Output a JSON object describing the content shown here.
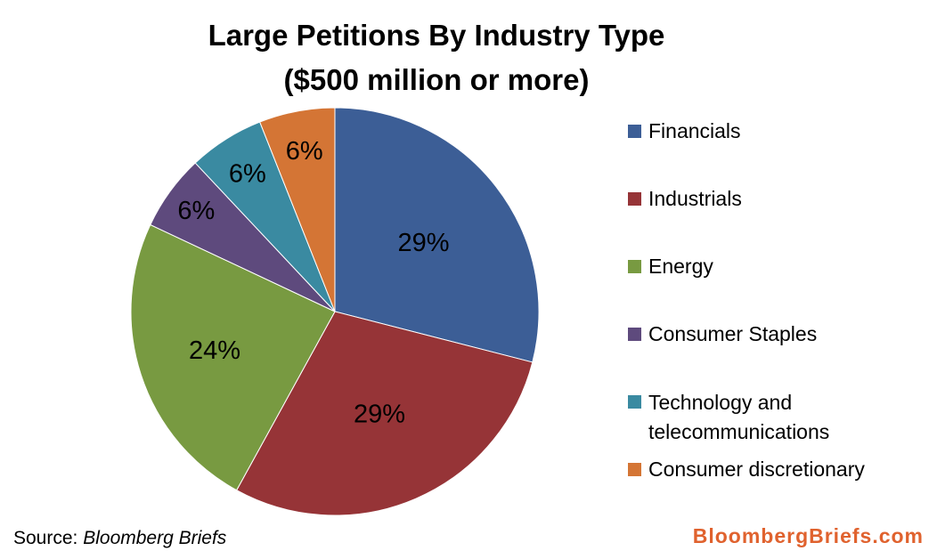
{
  "chart_data": {
    "type": "pie",
    "title": "Large Petitions By Industry Type",
    "subtitle": "($500 million or more)",
    "categories": [
      "Financials",
      "Industrials",
      "Energy",
      "Consumer Staples",
      "Technology and telecommunications",
      "Consumer discretionary"
    ],
    "values": [
      29,
      29,
      24,
      6,
      6,
      6
    ],
    "labels": [
      "29%",
      "29%",
      "24%",
      "6%",
      "6%",
      "6%"
    ],
    "colors": [
      "#3C5E96",
      "#963437",
      "#789A41",
      "#5E4A7D",
      "#3A8AA1",
      "#D47535"
    ],
    "legend": {
      "position": "right",
      "items": [
        "Financials",
        "Industrials",
        "Energy",
        "Consumer Staples",
        "Technology and telecommunications",
        "Consumer discretionary"
      ]
    }
  },
  "footer": {
    "source_label": "Source:",
    "source_name": "Bloomberg Briefs",
    "brand": "BloombergBriefs.com",
    "brand_color": "#E0622E"
  }
}
